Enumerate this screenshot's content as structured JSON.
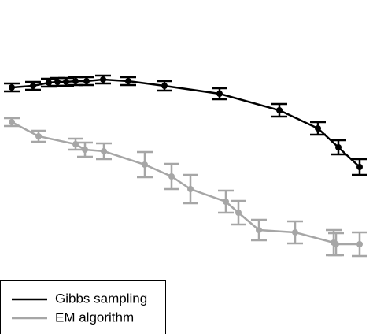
{
  "chart_data": {
    "type": "errorbar_line",
    "xlim": [
      0,
      4.74
    ],
    "ylim": [
      0,
      4.24
    ],
    "series": [
      {
        "name": "Gibbs sampling",
        "color": "#000000",
        "x": [
          0.15,
          0.42,
          0.62,
          0.73,
          0.84,
          0.96,
          1.1,
          1.31,
          1.63,
          2.09,
          2.79,
          3.55,
          4.04,
          4.3,
          4.57
        ],
        "values": [
          3.13,
          3.15,
          3.19,
          3.2,
          3.2,
          3.21,
          3.21,
          3.23,
          3.21,
          3.15,
          3.05,
          2.84,
          2.61,
          2.37,
          2.12
        ],
        "errors": [
          0.05,
          0.05,
          0.05,
          0.05,
          0.05,
          0.05,
          0.05,
          0.05,
          0.05,
          0.06,
          0.07,
          0.08,
          0.08,
          0.09,
          0.1
        ]
      },
      {
        "name": "EM algorithm",
        "color": "#a6a6a6",
        "x": [
          0.15,
          0.49,
          0.96,
          1.08,
          1.32,
          1.84,
          2.18,
          2.42,
          2.87,
          3.03,
          3.29,
          3.75,
          4.24,
          4.27,
          4.57
        ],
        "values": [
          2.69,
          2.51,
          2.41,
          2.34,
          2.32,
          2.15,
          2.0,
          1.84,
          1.68,
          1.54,
          1.32,
          1.29,
          1.16,
          1.14,
          1.14
        ],
        "errors": [
          0.05,
          0.07,
          0.07,
          0.09,
          0.1,
          0.16,
          0.16,
          0.18,
          0.14,
          0.15,
          0.13,
          0.14,
          0.16,
          0.14,
          0.15
        ]
      }
    ]
  }
}
